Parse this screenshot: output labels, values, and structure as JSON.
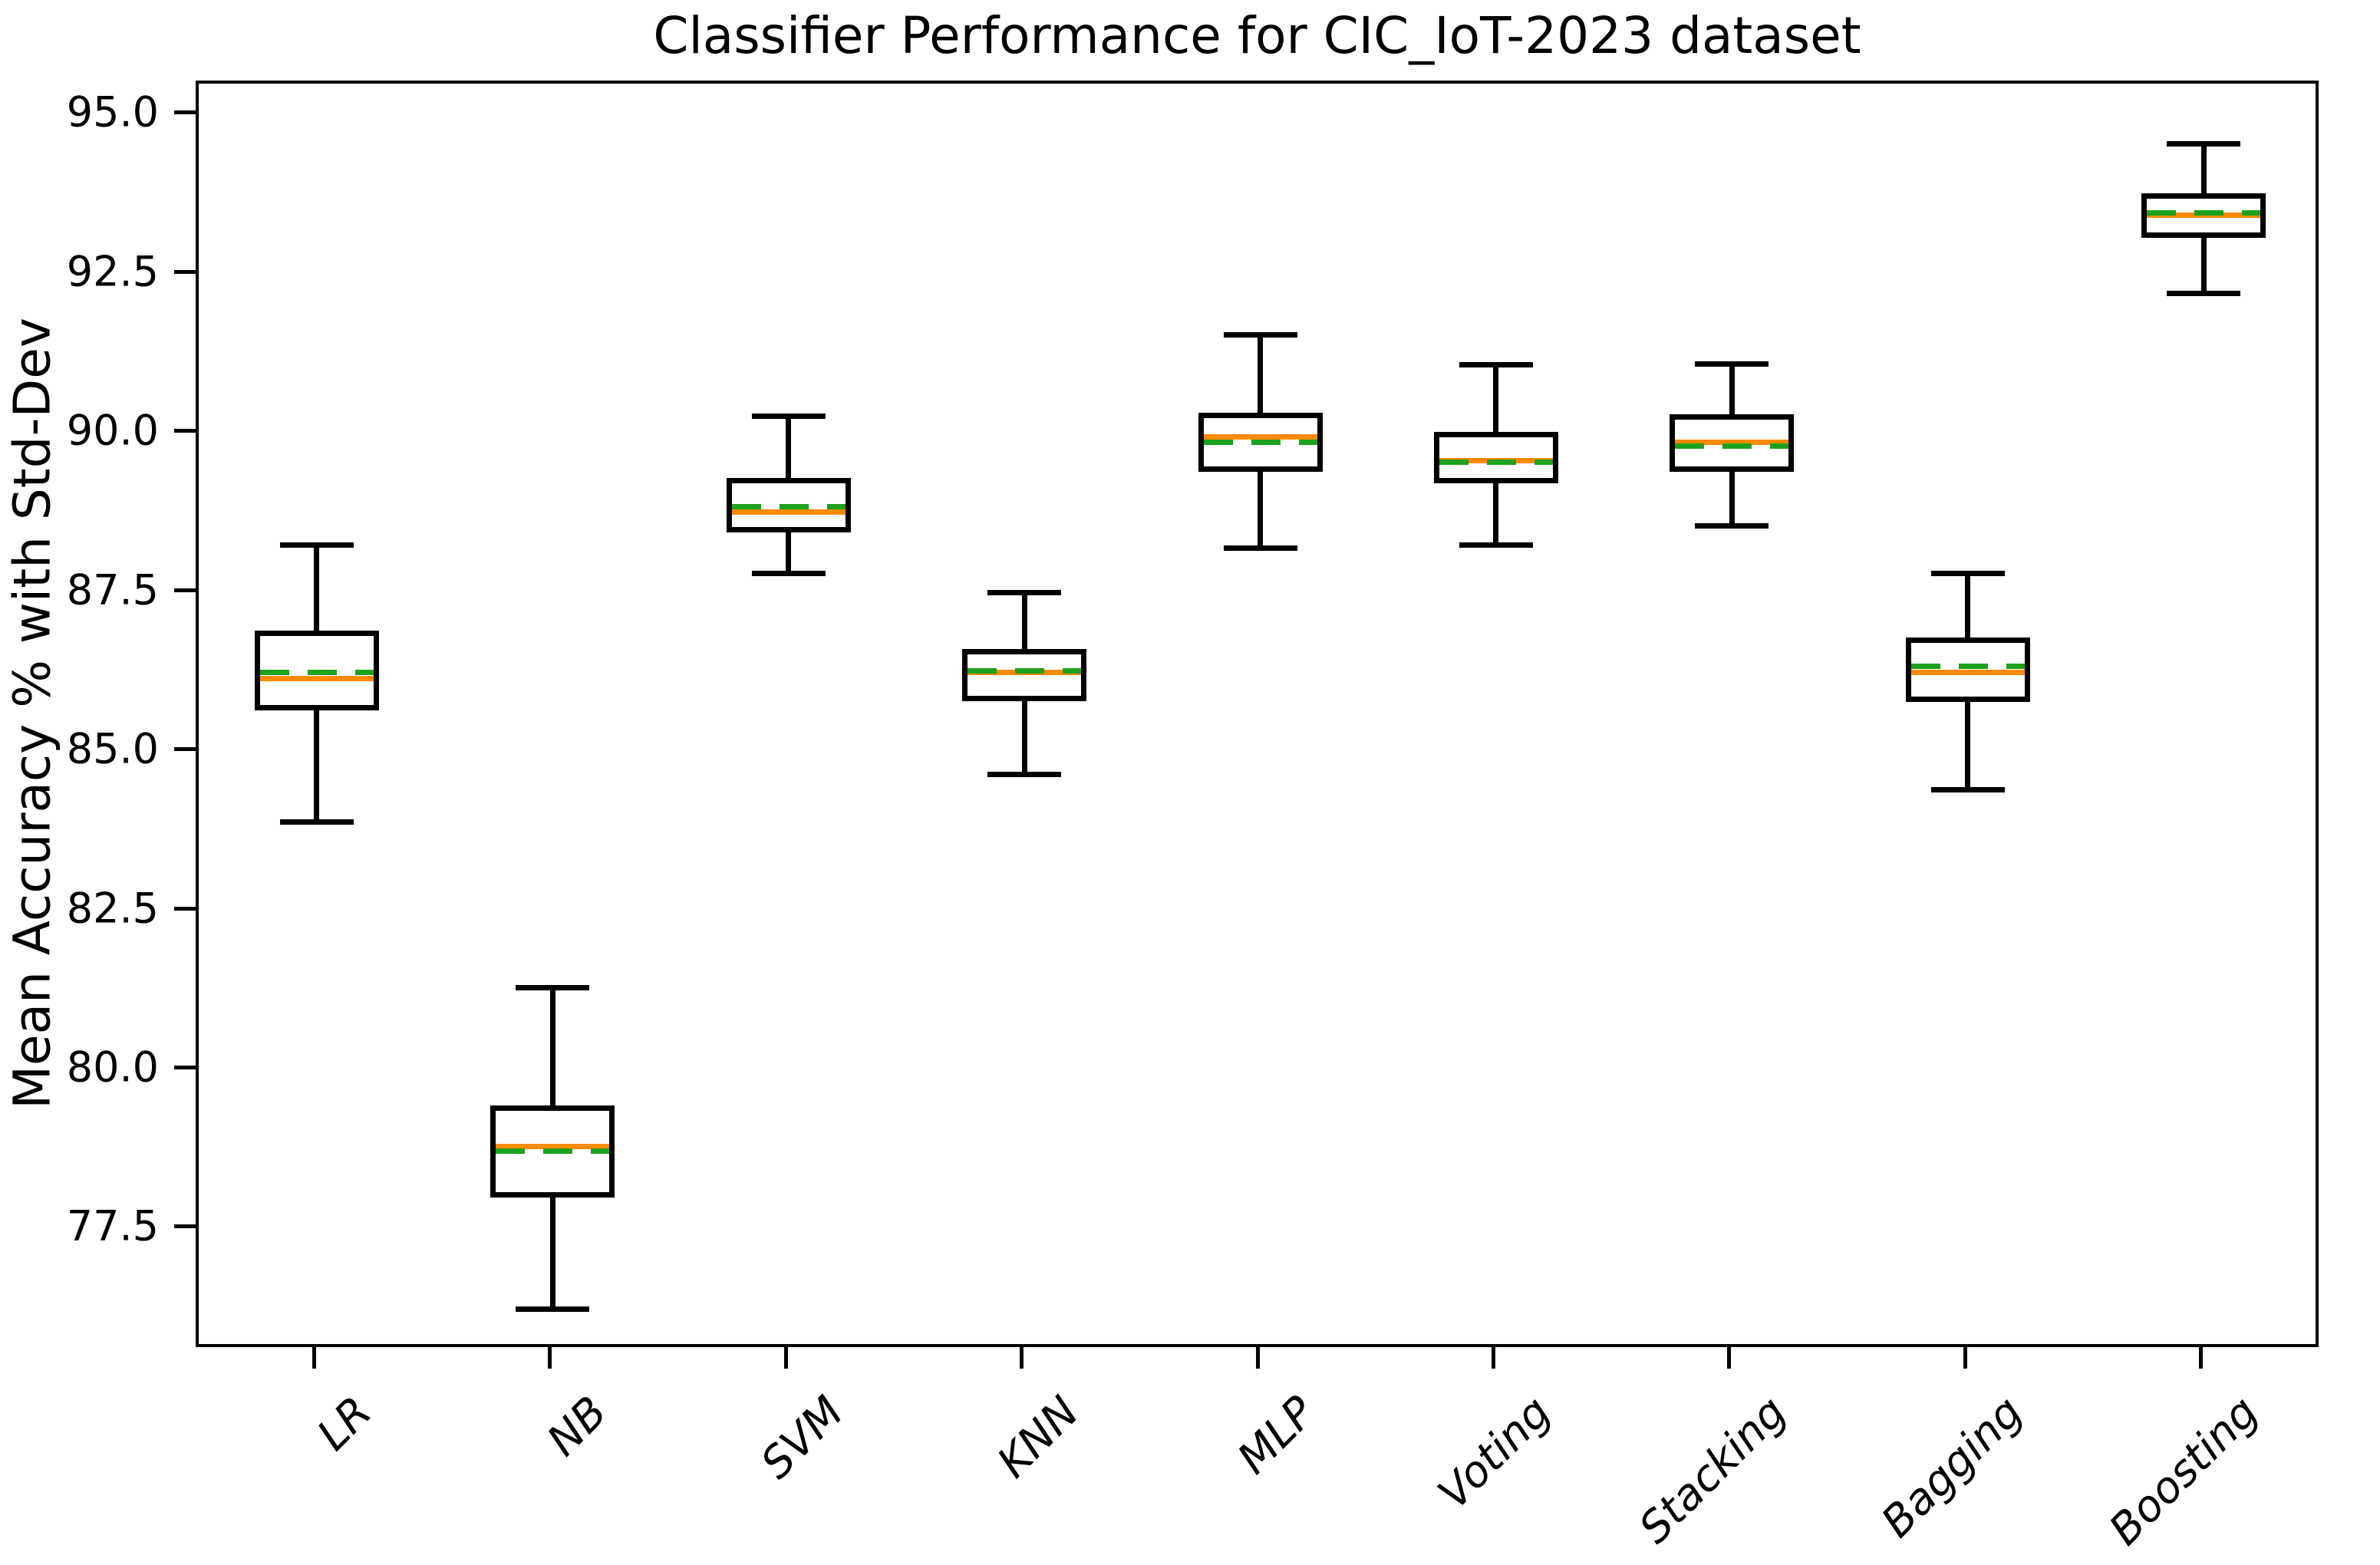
{
  "title": "Classifier Performance for CIC_IoT-2023 dataset",
  "y_axis_label": "Mean Accuracy % with Std-Dev",
  "colors": {
    "median_line": "#ff8a00",
    "mean_line": "#1ca21c",
    "box_edge": "#000000",
    "background": "#ffffff",
    "text": "#000000"
  },
  "chart_data": {
    "type": "boxplot",
    "title": "Classifier Performance for CIC_IoT-2023 dataset",
    "xlabel": "",
    "ylabel": "Mean Accuracy % with Std-Dev",
    "categories": [
      "LR",
      "NB",
      "SVM",
      "KNN",
      "MLP",
      "Voting",
      "Stacking",
      "Bagging",
      "Boosting"
    ],
    "yticks": [
      77.5,
      80.0,
      82.5,
      85.0,
      87.5,
      90.0,
      92.5,
      95.0
    ],
    "ytick_labels": [
      "77.5",
      "80.0",
      "82.5",
      "85.0",
      "87.5",
      "90.0",
      "92.5",
      "95.0"
    ],
    "ylim": [
      75.6,
      95.5
    ],
    "grid": false,
    "legend": false,
    "median_style": "solid orange",
    "mean_style": "dashed green",
    "series": [
      {
        "name": "LR",
        "whisker_low": 83.9,
        "q1": 85.65,
        "median": 86.15,
        "mean": 86.25,
        "q3": 86.9,
        "whisker_high": 88.25
      },
      {
        "name": "NB",
        "whisker_low": 76.25,
        "q1": 78.0,
        "median": 78.8,
        "mean": 78.73,
        "q3": 79.45,
        "whisker_high": 81.3
      },
      {
        "name": "SVM",
        "whisker_low": 87.8,
        "q1": 88.45,
        "median": 88.77,
        "mean": 88.85,
        "q3": 89.3,
        "whisker_high": 90.27
      },
      {
        "name": "KNN",
        "whisker_low": 84.65,
        "q1": 85.8,
        "median": 86.25,
        "mean": 86.27,
        "q3": 86.62,
        "whisker_high": 87.5
      },
      {
        "name": "MLP",
        "whisker_low": 88.2,
        "q1": 89.4,
        "median": 89.95,
        "mean": 89.87,
        "q3": 90.33,
        "whisker_high": 91.55
      },
      {
        "name": "Voting",
        "whisker_low": 88.25,
        "q1": 89.22,
        "median": 89.57,
        "mean": 89.55,
        "q3": 90.03,
        "whisker_high": 91.08
      },
      {
        "name": "Stacking",
        "whisker_low": 88.55,
        "q1": 89.4,
        "median": 89.87,
        "mean": 89.8,
        "q3": 90.3,
        "whisker_high": 91.1
      },
      {
        "name": "Bagging",
        "whisker_low": 84.4,
        "q1": 85.78,
        "median": 86.25,
        "mean": 86.35,
        "q3": 86.8,
        "whisker_high": 87.8
      },
      {
        "name": "Boosting",
        "whisker_low": 92.2,
        "q1": 93.08,
        "median": 93.43,
        "mean": 93.47,
        "q3": 93.78,
        "whisker_high": 94.55
      }
    ]
  }
}
